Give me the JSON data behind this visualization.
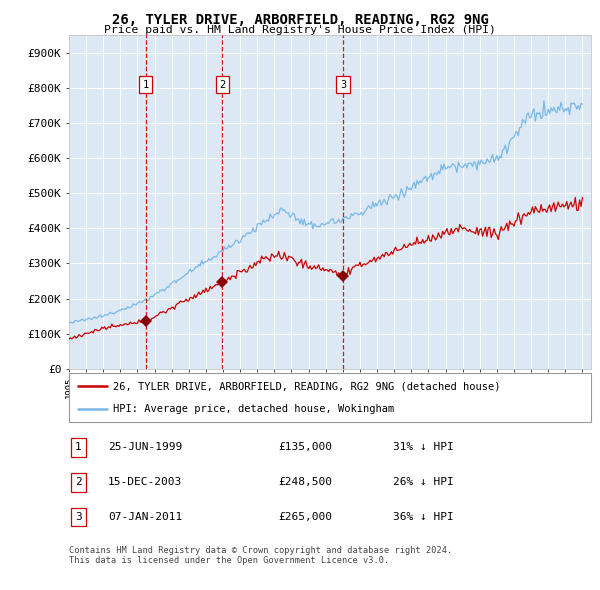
{
  "title": "26, TYLER DRIVE, ARBORFIELD, READING, RG2 9NG",
  "subtitle": "Price paid vs. HM Land Registry's House Price Index (HPI)",
  "ylabel_ticks": [
    "£0",
    "£100K",
    "£200K",
    "£300K",
    "£400K",
    "£500K",
    "£600K",
    "£700K",
    "£800K",
    "£900K"
  ],
  "ytick_vals": [
    0,
    100000,
    200000,
    300000,
    400000,
    500000,
    600000,
    700000,
    800000,
    900000
  ],
  "ylim": [
    0,
    950000
  ],
  "xlim_start": 1995.0,
  "xlim_end": 2025.5,
  "background_color": "#dce9f5",
  "grid_color": "#ffffff",
  "hpi_color": "#7ab8e8",
  "price_color": "#cc0000",
  "vline_color": "#cc0000",
  "marker_color": "#8b0000",
  "purchases": [
    {
      "date_num": 1999.48,
      "price": 135000,
      "label": "1"
    },
    {
      "date_num": 2003.96,
      "price": 248500,
      "label": "2"
    },
    {
      "date_num": 2011.02,
      "price": 265000,
      "label": "3"
    }
  ],
  "legend_property_label": "26, TYLER DRIVE, ARBORFIELD, READING, RG2 9NG (detached house)",
  "legend_hpi_label": "HPI: Average price, detached house, Wokingham",
  "table_rows": [
    {
      "num": "1",
      "date": "25-JUN-1999",
      "price": "£135,000",
      "pct": "31% ↓ HPI"
    },
    {
      "num": "2",
      "date": "15-DEC-2003",
      "price": "£248,500",
      "pct": "26% ↓ HPI"
    },
    {
      "num": "3",
      "date": "07-JAN-2011",
      "price": "£265,000",
      "pct": "36% ↓ HPI"
    }
  ],
  "footer": "Contains HM Land Registry data © Crown copyright and database right 2024.\nThis data is licensed under the Open Government Licence v3.0.",
  "xticks": [
    1995,
    1996,
    1997,
    1998,
    1999,
    2000,
    2001,
    2002,
    2003,
    2004,
    2005,
    2006,
    2007,
    2008,
    2009,
    2010,
    2011,
    2012,
    2013,
    2014,
    2015,
    2016,
    2017,
    2018,
    2019,
    2020,
    2021,
    2022,
    2023,
    2024,
    2025
  ]
}
